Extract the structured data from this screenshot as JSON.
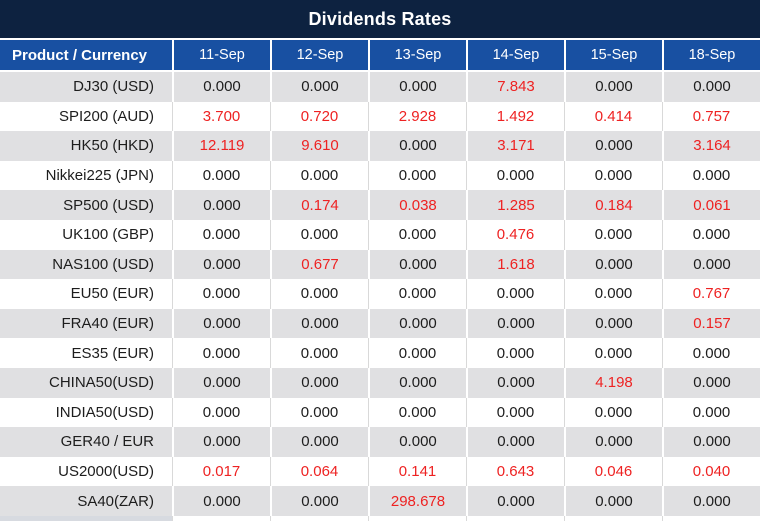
{
  "title": "Dividends Rates",
  "colors": {
    "title_bar": "#0d2240",
    "header_blue": "#1850a2",
    "row_gray": "#e0e0e2",
    "row_white": "#ffffff",
    "value_text": "#1d1d1d",
    "nonzero_red": "#ee2222"
  },
  "table": {
    "corner_header": "Product / Currency",
    "date_headers": [
      "11-Sep",
      "12-Sep",
      "13-Sep",
      "14-Sep",
      "15-Sep",
      "18-Sep"
    ],
    "rows": [
      {
        "product": "DJ30 (USD)",
        "values": [
          "0.000",
          "0.000",
          "0.000",
          "7.843",
          "0.000",
          "0.000"
        ],
        "red_cols": [
          3
        ]
      },
      {
        "product": "SPI200 (AUD)",
        "values": [
          "3.700",
          "0.720",
          "2.928",
          "1.492",
          "0.414",
          "0.757"
        ],
        "red_cols": [
          0,
          1,
          2,
          3,
          4,
          5
        ]
      },
      {
        "product": "HK50 (HKD)",
        "values": [
          "12.119",
          "9.610",
          "0.000",
          "3.171",
          "0.000",
          "3.164"
        ],
        "red_cols": [
          0,
          1,
          3,
          5
        ]
      },
      {
        "product": "Nikkei225 (JPN)",
        "values": [
          "0.000",
          "0.000",
          "0.000",
          "0.000",
          "0.000",
          "0.000"
        ],
        "red_cols": []
      },
      {
        "product": "SP500 (USD)",
        "values": [
          "0.000",
          "0.174",
          "0.038",
          "1.285",
          "0.184",
          "0.061"
        ],
        "red_cols": [
          1,
          2,
          3,
          4,
          5
        ]
      },
      {
        "product": "UK100 (GBP)",
        "values": [
          "0.000",
          "0.000",
          "0.000",
          "0.476",
          "0.000",
          "0.000"
        ],
        "red_cols": [
          3
        ]
      },
      {
        "product": "NAS100 (USD)",
        "values": [
          "0.000",
          "0.677",
          "0.000",
          "1.618",
          "0.000",
          "0.000"
        ],
        "red_cols": [
          1,
          3
        ]
      },
      {
        "product": "EU50 (EUR)",
        "values": [
          "0.000",
          "0.000",
          "0.000",
          "0.000",
          "0.000",
          "0.767"
        ],
        "red_cols": [
          5
        ]
      },
      {
        "product": "FRA40 (EUR)",
        "values": [
          "0.000",
          "0.000",
          "0.000",
          "0.000",
          "0.000",
          "0.157"
        ],
        "red_cols": [
          5
        ]
      },
      {
        "product": "ES35 (EUR)",
        "values": [
          "0.000",
          "0.000",
          "0.000",
          "0.000",
          "0.000",
          "0.000"
        ],
        "red_cols": []
      },
      {
        "product": "CHINA50(USD)",
        "values": [
          "0.000",
          "0.000",
          "0.000",
          "0.000",
          "4.198",
          "0.000"
        ],
        "red_cols": [
          4
        ]
      },
      {
        "product": "INDIA50(USD)",
        "values": [
          "0.000",
          "0.000",
          "0.000",
          "0.000",
          "0.000",
          "0.000"
        ],
        "red_cols": []
      },
      {
        "product": "GER40 / EUR",
        "values": [
          "0.000",
          "0.000",
          "0.000",
          "0.000",
          "0.000",
          "0.000"
        ],
        "red_cols": []
      },
      {
        "product": "US2000(USD)",
        "values": [
          "0.017",
          "0.064",
          "0.141",
          "0.643",
          "0.046",
          "0.040"
        ],
        "red_cols": [
          0,
          1,
          2,
          3,
          4,
          5
        ]
      },
      {
        "product": "SA40(ZAR)",
        "values": [
          "0.000",
          "0.000",
          "298.678",
          "0.000",
          "0.000",
          "0.000"
        ],
        "red_cols": [
          2
        ]
      }
    ]
  }
}
